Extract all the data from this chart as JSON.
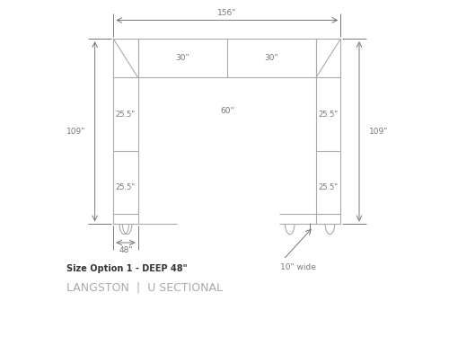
{
  "bg_color": "#ffffff",
  "line_color": "#aaaaaa",
  "dim_color": "#777777",
  "bold_text_color": "#333333",
  "title_color": "#aaaaaa",
  "dim_156_label": "156\"",
  "dim_109_label": "109\"",
  "dim_48_label": "48\"",
  "dim_30a_label": "30\"",
  "dim_30b_label": "30\"",
  "dim_60_label": "60\"",
  "dim_255a_label": "25.5\"",
  "dim_255b_label": "25.5\"",
  "dim_255c_label": "25.5\"",
  "dim_255d_label": "25.5\"",
  "dim_10_label": "10\" wide",
  "size_option_label": "Size Option 1 - DEEP 48\"",
  "product_label": "LANGSTON  |  U SECTIONAL"
}
